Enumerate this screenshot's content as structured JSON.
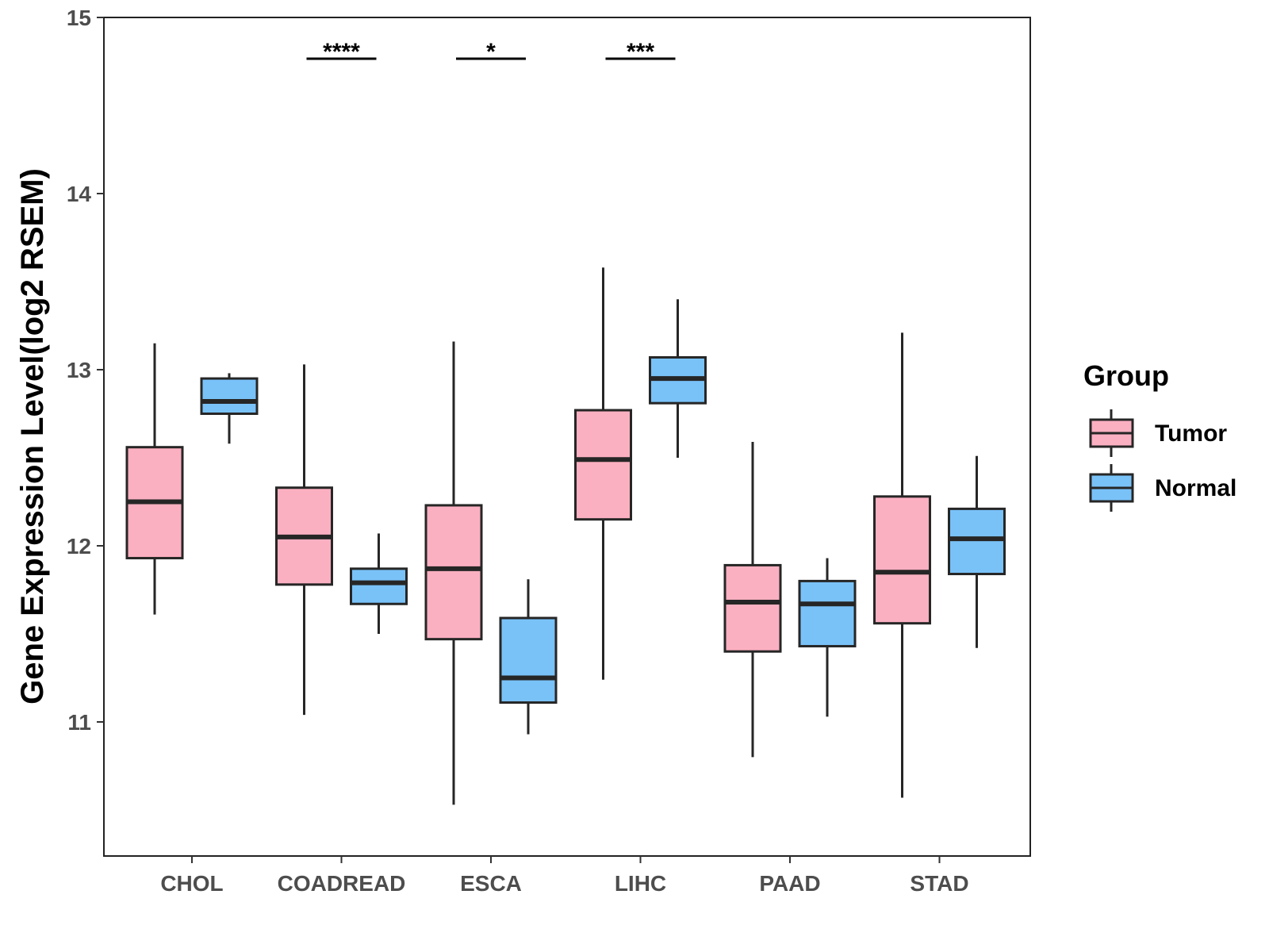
{
  "chart_data": {
    "type": "boxplot",
    "title": "",
    "xlabel": "",
    "ylabel": "Gene Expression Level(log2 RSEM)",
    "ylim": [
      10.3,
      15
    ],
    "yticks": [
      11,
      12,
      13,
      14,
      15
    ],
    "ytick_labels": [
      "11",
      "12",
      "13",
      "14",
      "15"
    ],
    "grid": false,
    "categories": [
      "CHOL",
      "COADREAD",
      "ESCA",
      "LIHC",
      "PAAD",
      "STAD"
    ],
    "legend": {
      "title": "Group",
      "position": "right",
      "entries": [
        "Tumor",
        "Normal"
      ]
    },
    "colors": {
      "Tumor": "#fbb0c1",
      "Normal": "#79c2f8",
      "outline": "#262626"
    },
    "series": [
      {
        "name": "Tumor",
        "boxes": [
          {
            "min": 11.61,
            "q1": 11.93,
            "median": 12.25,
            "q3": 12.56,
            "max": 13.15
          },
          {
            "min": 11.04,
            "q1": 11.78,
            "median": 12.05,
            "q3": 12.33,
            "max": 13.03
          },
          {
            "min": 10.53,
            "q1": 11.47,
            "median": 11.87,
            "q3": 12.23,
            "max": 13.16
          },
          {
            "min": 11.24,
            "q1": 12.15,
            "median": 12.49,
            "q3": 12.77,
            "max": 13.58
          },
          {
            "min": 10.8,
            "q1": 11.4,
            "median": 11.68,
            "q3": 11.89,
            "max": 12.59
          },
          {
            "min": 10.57,
            "q1": 11.56,
            "median": 11.85,
            "q3": 12.28,
            "max": 13.21
          }
        ]
      },
      {
        "name": "Normal",
        "boxes": [
          {
            "min": 12.58,
            "q1": 12.75,
            "median": 12.82,
            "q3": 12.95,
            "max": 12.98
          },
          {
            "min": 11.5,
            "q1": 11.67,
            "median": 11.79,
            "q3": 11.87,
            "max": 12.07
          },
          {
            "min": 10.93,
            "q1": 11.11,
            "median": 11.25,
            "q3": 11.59,
            "max": 11.81
          },
          {
            "min": 12.5,
            "q1": 12.81,
            "median": 12.95,
            "q3": 13.07,
            "max": 13.4
          },
          {
            "min": 11.03,
            "q1": 11.43,
            "median": 11.67,
            "q3": 11.8,
            "max": 11.93
          },
          {
            "min": 11.42,
            "q1": 11.84,
            "median": 12.04,
            "q3": 12.21,
            "max": 12.51
          }
        ]
      }
    ],
    "significance": [
      {
        "category": "COADREAD",
        "label": "****"
      },
      {
        "category": "ESCA",
        "label": "*"
      },
      {
        "category": "LIHC",
        "label": "***"
      }
    ]
  }
}
